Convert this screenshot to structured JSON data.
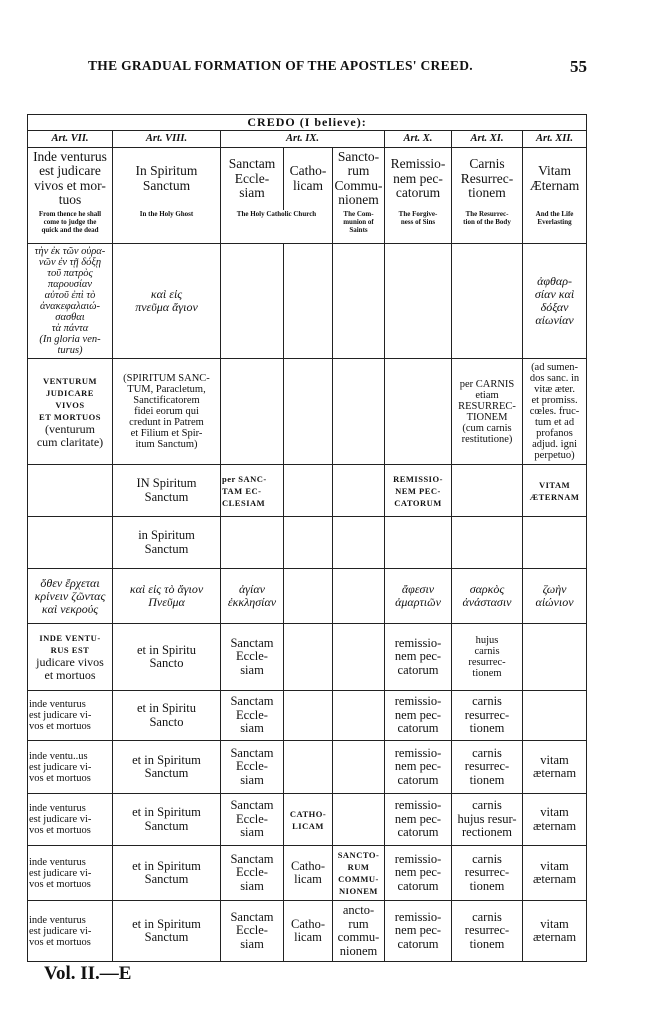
{
  "page": {
    "running_head": "THE GRADUAL FORMATION OF THE APOSTLES' CREED.",
    "page_number": "55",
    "footer": "Vol. II.—E"
  },
  "table": {
    "title": "CREDO (I believe):",
    "articles": [
      {
        "label": "Art. VII.",
        "span": 1
      },
      {
        "label": "Art. VIII.",
        "span": 1
      },
      {
        "label": "Art. IX.",
        "span": 3
      },
      {
        "label": "Art. X.",
        "span": 1
      },
      {
        "label": "Art. XI.",
        "span": 1
      },
      {
        "label": "Art. XII.",
        "span": 1
      }
    ],
    "latin_heads": [
      "Inde venturus\nest judicare\nvivos et mor-\ntuos",
      "In Spiritum\nSanctum",
      "Sanctam\nEccle-\nsiam",
      "Catho-\nlicam",
      "Sancto-\nrum\nCommu-\nnionem",
      "Remissio-\nnem pec-\ncatorum",
      "Carnis\nResurrec-\ntionem",
      "Vitam\nÆternam"
    ],
    "english_heads": [
      {
        "text": "From thence he shall\ncome to judge the\nquick and the dead",
        "span": 1
      },
      {
        "text": "In the Holy Ghost",
        "span": 1
      },
      {
        "text": "The Holy Catholic Church",
        "span": 2
      },
      {
        "text": "The Com-\nmunion of\nSaints",
        "span": 1
      },
      {
        "text": "The Forgive-\nness of Sins",
        "span": 1
      },
      {
        "text": "The Resurrec-\ntion of the Body",
        "span": 1
      },
      {
        "text": "And the Life\nEverlasting",
        "span": 1
      }
    ],
    "rows": [
      [
        {
          "t": "τὴν ἐκ τῶν οὐρα-\nνῶν ἐν τῇ δόξῃ\nτοῦ πατρὸς\nπαρουσίαν\nαὐτοῦ ἐπὶ τὸ\nἀνακεφαλαιώ-\nσασθαι\nτὰ πάντα\n(In gloria ven-\nturus)",
          "s": "gr sm"
        },
        {
          "t": "καὶ εἰς\nπνεῦμα ἅγιον",
          "s": "gr"
        },
        {
          "t": ""
        },
        {
          "t": ""
        },
        {
          "t": ""
        },
        {
          "t": ""
        },
        {
          "t": ""
        },
        {
          "t": "ἀφθαρ-\nσίαν καὶ\nδόξαν\nαἰωνίαν",
          "s": "gr"
        }
      ],
      [
        {
          "t": "VENTURUM\nJUDICARE\nVIVOS\nET MORTUOS",
          "s": "sc",
          "extra": "(venturum\ncum claritate)"
        },
        {
          "t": "(SPIRITUM SANC-\nTUM, Paracletum,\nSanctificatorem\nfidei eorum qui\ncredunt in Patrem\net Filium et Spir-\nitum Sanctum)",
          "s": "sm"
        },
        {
          "t": ""
        },
        {
          "t": ""
        },
        {
          "t": ""
        },
        {
          "t": ""
        },
        {
          "t": "per CARNIS\netiam\nRESURREC-\nTIONEM\n(cum carnis\nrestitutione)",
          "s": "sm"
        },
        {
          "t": "(ad sumen-\ndos sanc. in\nvitæ æter.\net promiss.\ncœles. fruc-\ntum et ad\nprofanos\nadjud. igni\nperpetuo)",
          "s": "sm"
        }
      ],
      [
        {
          "t": ""
        },
        {
          "t": "IN Spiritum\nSanctum"
        },
        {
          "t": "per SANC-\nTAM EC-\nCLESIAM",
          "s": "sc tl"
        },
        {
          "t": ""
        },
        {
          "t": ""
        },
        {
          "t": "REMISSIO-\nNEM PEC-\nCATORUM",
          "s": "sc"
        },
        {
          "t": ""
        },
        {
          "t": "VITAM\nÆTERNAM",
          "s": "sc"
        }
      ],
      [
        {
          "t": ""
        },
        {
          "t": "in Spiritum\nSanctum"
        },
        {
          "t": ""
        },
        {
          "t": ""
        },
        {
          "t": ""
        },
        {
          "t": ""
        },
        {
          "t": ""
        },
        {
          "t": ""
        }
      ],
      [
        {
          "t": "ὅθεν ἔρχεται\nκρίνειν ζῶντας\nκαὶ νεκρούς",
          "s": "gr"
        },
        {
          "t": "καὶ εἰς τὸ ἅγιον\nΠνεῦμα",
          "s": "gr"
        },
        {
          "t": "ἁγίαν\nἐκκλησίαν",
          "s": "gr"
        },
        {
          "t": ""
        },
        {
          "t": ""
        },
        {
          "t": "ἄφεσιν\nἁμαρτιῶν",
          "s": "gr"
        },
        {
          "t": "σαρκὸς\nἀνάστασιν",
          "s": "gr"
        },
        {
          "t": "ζωὴν\nαἰώνιον",
          "s": "gr"
        }
      ],
      [
        {
          "t": "INDE VENTU-\nRUS EST",
          "s": "sc",
          "extra": "judicare vivos\net mortuos"
        },
        {
          "t": "et in Spiritu\nSancto"
        },
        {
          "t": "Sanctam\nEccle-\nsiam"
        },
        {
          "t": ""
        },
        {
          "t": ""
        },
        {
          "t": "remissio-\nnem pec-\ncatorum"
        },
        {
          "t": "hujus\ncarnis\nresurrec-\ntionem",
          "s": "sm"
        },
        {
          "t": ""
        }
      ],
      [
        {
          "t": "inde venturus\nest judicare vi-\nvos et mortuos",
          "s": "sm tl"
        },
        {
          "t": "et in Spiritu\nSancto"
        },
        {
          "t": "Sanctam\nEccle-\nsiam"
        },
        {
          "t": ""
        },
        {
          "t": ""
        },
        {
          "t": "remissio-\nnem pec-\ncatorum"
        },
        {
          "t": "carnis\nresurrec-\ntionem"
        },
        {
          "t": ""
        }
      ],
      [
        {
          "t": "inde ventu..us\nest judicare vi-\nvos et mortuos",
          "s": "sm tl"
        },
        {
          "t": "et in Spiritum\nSanctum"
        },
        {
          "t": "Sanctam\nEccle-\nsiam"
        },
        {
          "t": ""
        },
        {
          "t": ""
        },
        {
          "t": "remissio-\nnem pec-\ncatorum"
        },
        {
          "t": "carnis\nresurrec-\ntionem"
        },
        {
          "t": "vitam\næternam"
        }
      ],
      [
        {
          "t": "inde venturus\nest judicare vi-\nvos et mortuos",
          "s": "sm tl"
        },
        {
          "t": "et in Spiritum\nSanctum"
        },
        {
          "t": "Sanctam\nEccle-\nsiam"
        },
        {
          "t": "CATHO-\nLICAM",
          "s": "sc"
        },
        {
          "t": ""
        },
        {
          "t": "remissio-\nnem pec-\ncatorum"
        },
        {
          "t": "carnis\nhujus resur-\nrectionem"
        },
        {
          "t": "vitam\næternam"
        }
      ],
      [
        {
          "t": "inde venturus\nest judicare vi-\nvos et mortuos",
          "s": "sm tl"
        },
        {
          "t": "et in Spiritum\nSanctum"
        },
        {
          "t": "Sanctam\nEccle-\nsiam"
        },
        {
          "t": "Catho-\nlicam"
        },
        {
          "t": "SANCTO-\nRUM\nCOMMU-\nNIONEM",
          "s": "sc"
        },
        {
          "t": "remissio-\nnem pec-\ncatorum"
        },
        {
          "t": "carnis\nresurrec-\ntionem"
        },
        {
          "t": "vitam\næternam"
        }
      ],
      [
        {
          "t": "inde venturus\nest judicare vi-\nvos et mortuos",
          "s": "sm tl"
        },
        {
          "t": "et in Spiritum\nSanctum"
        },
        {
          "t": "Sanctam\nEccle-\nsiam"
        },
        {
          "t": "Catho-\nlicam"
        },
        {
          "t": "ancto-\nrum\ncommu-\nnionem"
        },
        {
          "t": "remissio-\nnem pec-\ncatorum"
        },
        {
          "t": "carnis\nresurrec-\ntionem"
        },
        {
          "t": "vitam\næternam"
        }
      ]
    ]
  }
}
